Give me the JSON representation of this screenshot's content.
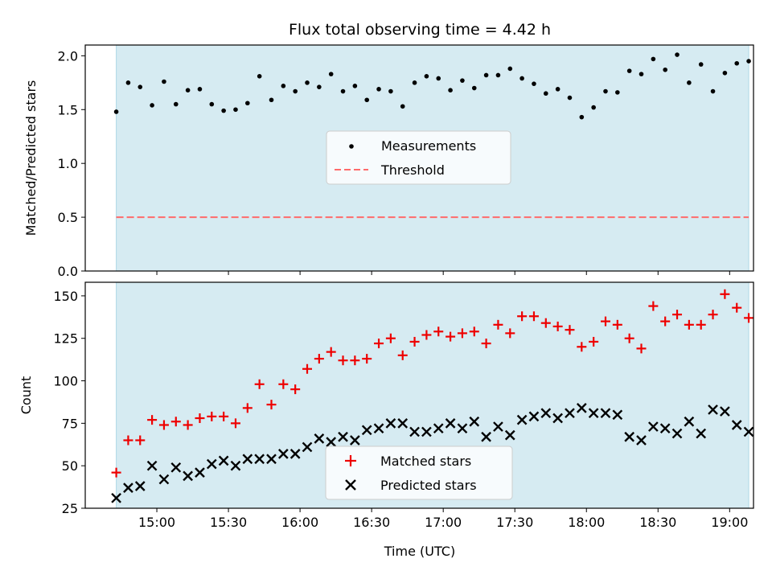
{
  "colors": {
    "shade": "#add8e6",
    "measurement": "#000000",
    "threshold": "#ff6b6b",
    "matched": "#ee0000",
    "predicted": "#000000"
  },
  "chart_data": [
    {
      "type": "scatter",
      "title": "Flux total observing time = 4.42 h",
      "xlabel": "",
      "ylabel": "Matched/Predicted stars",
      "ylim": [
        0,
        2.1
      ],
      "yticks": [
        0.0,
        0.5,
        1.0,
        1.5,
        2.0
      ],
      "ytick_labels": [
        "0.0",
        "0.5",
        "1.0",
        "1.5",
        "2.0"
      ],
      "xlim_minutes": [
        870,
        1150
      ],
      "shaded_span_minutes": [
        883,
        1148
      ],
      "threshold": 0.5,
      "legend": [
        "Measurements",
        "Threshold"
      ],
      "legend_location": "center",
      "x_minutes": [
        883,
        888,
        893,
        898,
        903,
        908,
        913,
        918,
        923,
        928,
        933,
        938,
        943,
        948,
        953,
        958,
        963,
        968,
        973,
        978,
        983,
        988,
        993,
        998,
        1003,
        1008,
        1013,
        1018,
        1023,
        1028,
        1033,
        1038,
        1043,
        1048,
        1053,
        1058,
        1063,
        1068,
        1073,
        1078,
        1083,
        1088,
        1093,
        1098,
        1103,
        1108,
        1113,
        1118,
        1123,
        1128,
        1133,
        1138,
        1143,
        1148
      ],
      "series": [
        {
          "name": "Measurements",
          "values": [
            1.48,
            1.75,
            1.71,
            1.54,
            1.76,
            1.55,
            1.68,
            1.69,
            1.55,
            1.49,
            1.5,
            1.56,
            1.81,
            1.59,
            1.72,
            1.67,
            1.75,
            1.71,
            1.83,
            1.67,
            1.72,
            1.59,
            1.69,
            1.67,
            1.53,
            1.75,
            1.81,
            1.79,
            1.68,
            1.77,
            1.7,
            1.82,
            1.82,
            1.88,
            1.79,
            1.74,
            1.65,
            1.69,
            1.61,
            1.43,
            1.52,
            1.67,
            1.66,
            1.86,
            1.83,
            1.97,
            1.87,
            2.01,
            1.75,
            1.92,
            1.67,
            1.84,
            1.93,
            1.95
          ]
        }
      ]
    },
    {
      "type": "scatter",
      "title": "",
      "xlabel": "Time (UTC)",
      "ylabel": "Count",
      "ylim": [
        25,
        158
      ],
      "yticks": [
        25,
        50,
        75,
        100,
        125,
        150
      ],
      "ytick_labels": [
        "25",
        "50",
        "75",
        "100",
        "125",
        "150"
      ],
      "xlim_minutes": [
        870,
        1150
      ],
      "shaded_span_minutes": [
        883,
        1148
      ],
      "xticks_minutes": [
        900,
        930,
        960,
        990,
        1020,
        1050,
        1080,
        1110,
        1140
      ],
      "xtick_labels": [
        "15:00",
        "15:30",
        "16:00",
        "16:30",
        "17:00",
        "17:30",
        "18:00",
        "18:30",
        "19:00"
      ],
      "legend": [
        "Matched stars",
        "Predicted stars"
      ],
      "legend_location": "lower center",
      "x_minutes": [
        883,
        888,
        893,
        898,
        903,
        908,
        913,
        918,
        923,
        928,
        933,
        938,
        943,
        948,
        953,
        958,
        963,
        968,
        973,
        978,
        983,
        988,
        993,
        998,
        1003,
        1008,
        1013,
        1018,
        1023,
        1028,
        1033,
        1038,
        1043,
        1048,
        1053,
        1058,
        1063,
        1068,
        1073,
        1078,
        1083,
        1088,
        1093,
        1098,
        1103,
        1108,
        1113,
        1118,
        1123,
        1128,
        1133,
        1138,
        1143,
        1148
      ],
      "series": [
        {
          "name": "Matched stars",
          "values": [
            46,
            65,
            65,
            77,
            74,
            76,
            74,
            78,
            79,
            79,
            75,
            84,
            98,
            86,
            98,
            95,
            107,
            113,
            117,
            112,
            112,
            113,
            122,
            125,
            115,
            123,
            127,
            129,
            126,
            128,
            129,
            122,
            133,
            128,
            138,
            138,
            134,
            132,
            130,
            120,
            123,
            135,
            133,
            125,
            119,
            144,
            135,
            139,
            133,
            133,
            139,
            151,
            143,
            137
          ]
        },
        {
          "name": "Predicted stars",
          "values": [
            31,
            37,
            38,
            50,
            42,
            49,
            44,
            46,
            51,
            53,
            50,
            54,
            54,
            54,
            57,
            57,
            61,
            66,
            64,
            67,
            65,
            71,
            72,
            75,
            75,
            70,
            70,
            72,
            75,
            72,
            76,
            67,
            73,
            68,
            77,
            79,
            81,
            78,
            81,
            84,
            81,
            81,
            80,
            67,
            65,
            73,
            72,
            69,
            76,
            69,
            83,
            82,
            74,
            70
          ]
        }
      ]
    }
  ]
}
